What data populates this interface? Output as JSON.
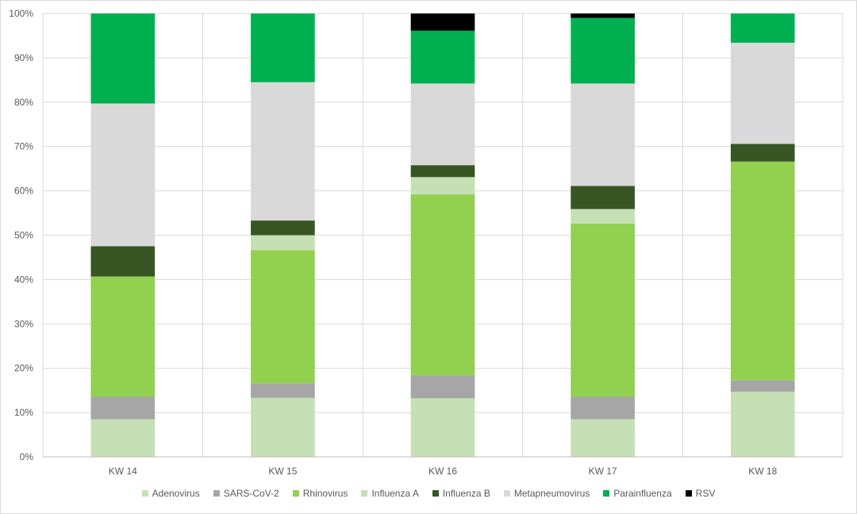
{
  "chart_data": {
    "type": "bar",
    "stacked": true,
    "title": "",
    "xlabel": "",
    "ylabel": "",
    "ylim": [
      0,
      100
    ],
    "y_ticks": [
      "0%",
      "10%",
      "20%",
      "30%",
      "40%",
      "50%",
      "60%",
      "70%",
      "80%",
      "90%",
      "100%"
    ],
    "grid": true,
    "legend_position": "bottom",
    "categories": [
      "KW 14",
      "KW 15",
      "KW 16",
      "KW 17",
      "KW 18"
    ],
    "series": [
      {
        "name": "Adenovirus",
        "color": "#c5e0b4",
        "values": [
          8.5,
          13.3,
          13.2,
          8.5,
          14.7
        ]
      },
      {
        "name": "SARS-CoV-2",
        "color": "#a6a6a6",
        "values": [
          5.1,
          3.3,
          5.2,
          5.1,
          2.6
        ]
      },
      {
        "name": "Rhinovirus",
        "color": "#92d050",
        "values": [
          27.1,
          30.0,
          40.8,
          39.0,
          49.3
        ]
      },
      {
        "name": "Influenza A",
        "color": "#c5e0b4",
        "values": [
          0,
          3.4,
          3.9,
          3.3,
          0
        ]
      },
      {
        "name": "Influenza B",
        "color": "#375623",
        "values": [
          6.8,
          3.3,
          2.7,
          5.2,
          4.0
        ]
      },
      {
        "name": "Metapneumovirus",
        "color": "#d9d9d9",
        "values": [
          32.2,
          31.2,
          18.4,
          23.1,
          22.8
        ]
      },
      {
        "name": "Parainfluenza",
        "color": "#00b050",
        "values": [
          20.3,
          15.5,
          11.9,
          14.8,
          6.6
        ]
      },
      {
        "name": "RSV",
        "color": "#000000",
        "values": [
          0,
          0,
          3.9,
          1.0,
          0
        ]
      }
    ]
  }
}
